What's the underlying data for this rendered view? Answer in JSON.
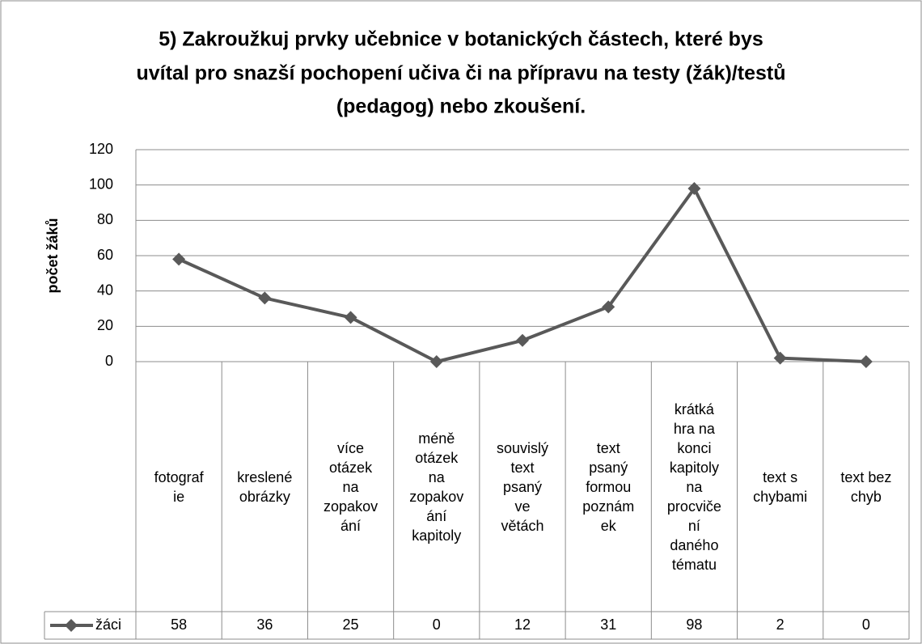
{
  "chart_data": {
    "type": "line",
    "title": [
      "5) Zakroužkuj prvky učebnice v botanických částech, které bys",
      "uvítal pro snazší pochopení učiva či na přípravu na testy (žák)/testů",
      "(pedagog) nebo zkoušení."
    ],
    "y_label": "počet žáků",
    "categories": [
      [
        "fotograf",
        "ie"
      ],
      [
        "kreslené",
        "obrázky"
      ],
      [
        "více",
        "otázek",
        "na",
        "zopakov",
        "ání"
      ],
      [
        "méně",
        "otázek",
        "na",
        "zopakov",
        "ání",
        "kapitoly"
      ],
      [
        "souvislý",
        "text",
        "psaný",
        "ve",
        "větách"
      ],
      [
        "text",
        "psaný",
        "formou",
        "poznám",
        "ek"
      ],
      [
        "krátká",
        "hra na",
        "konci",
        "kapitoly",
        "na",
        "procviče",
        "ní",
        "daného",
        "tématu"
      ],
      [
        "text s",
        "chybami"
      ],
      [
        "text bez",
        "chyb"
      ]
    ],
    "series": [
      {
        "name": "žáci",
        "color": "#595959",
        "values": [
          58,
          36,
          25,
          0,
          12,
          31,
          98,
          2,
          0
        ]
      }
    ],
    "ylim": [
      0,
      120
    ],
    "yticks": [
      0,
      20,
      40,
      60,
      80,
      100,
      120
    ],
    "grid": true,
    "data_table": true
  }
}
